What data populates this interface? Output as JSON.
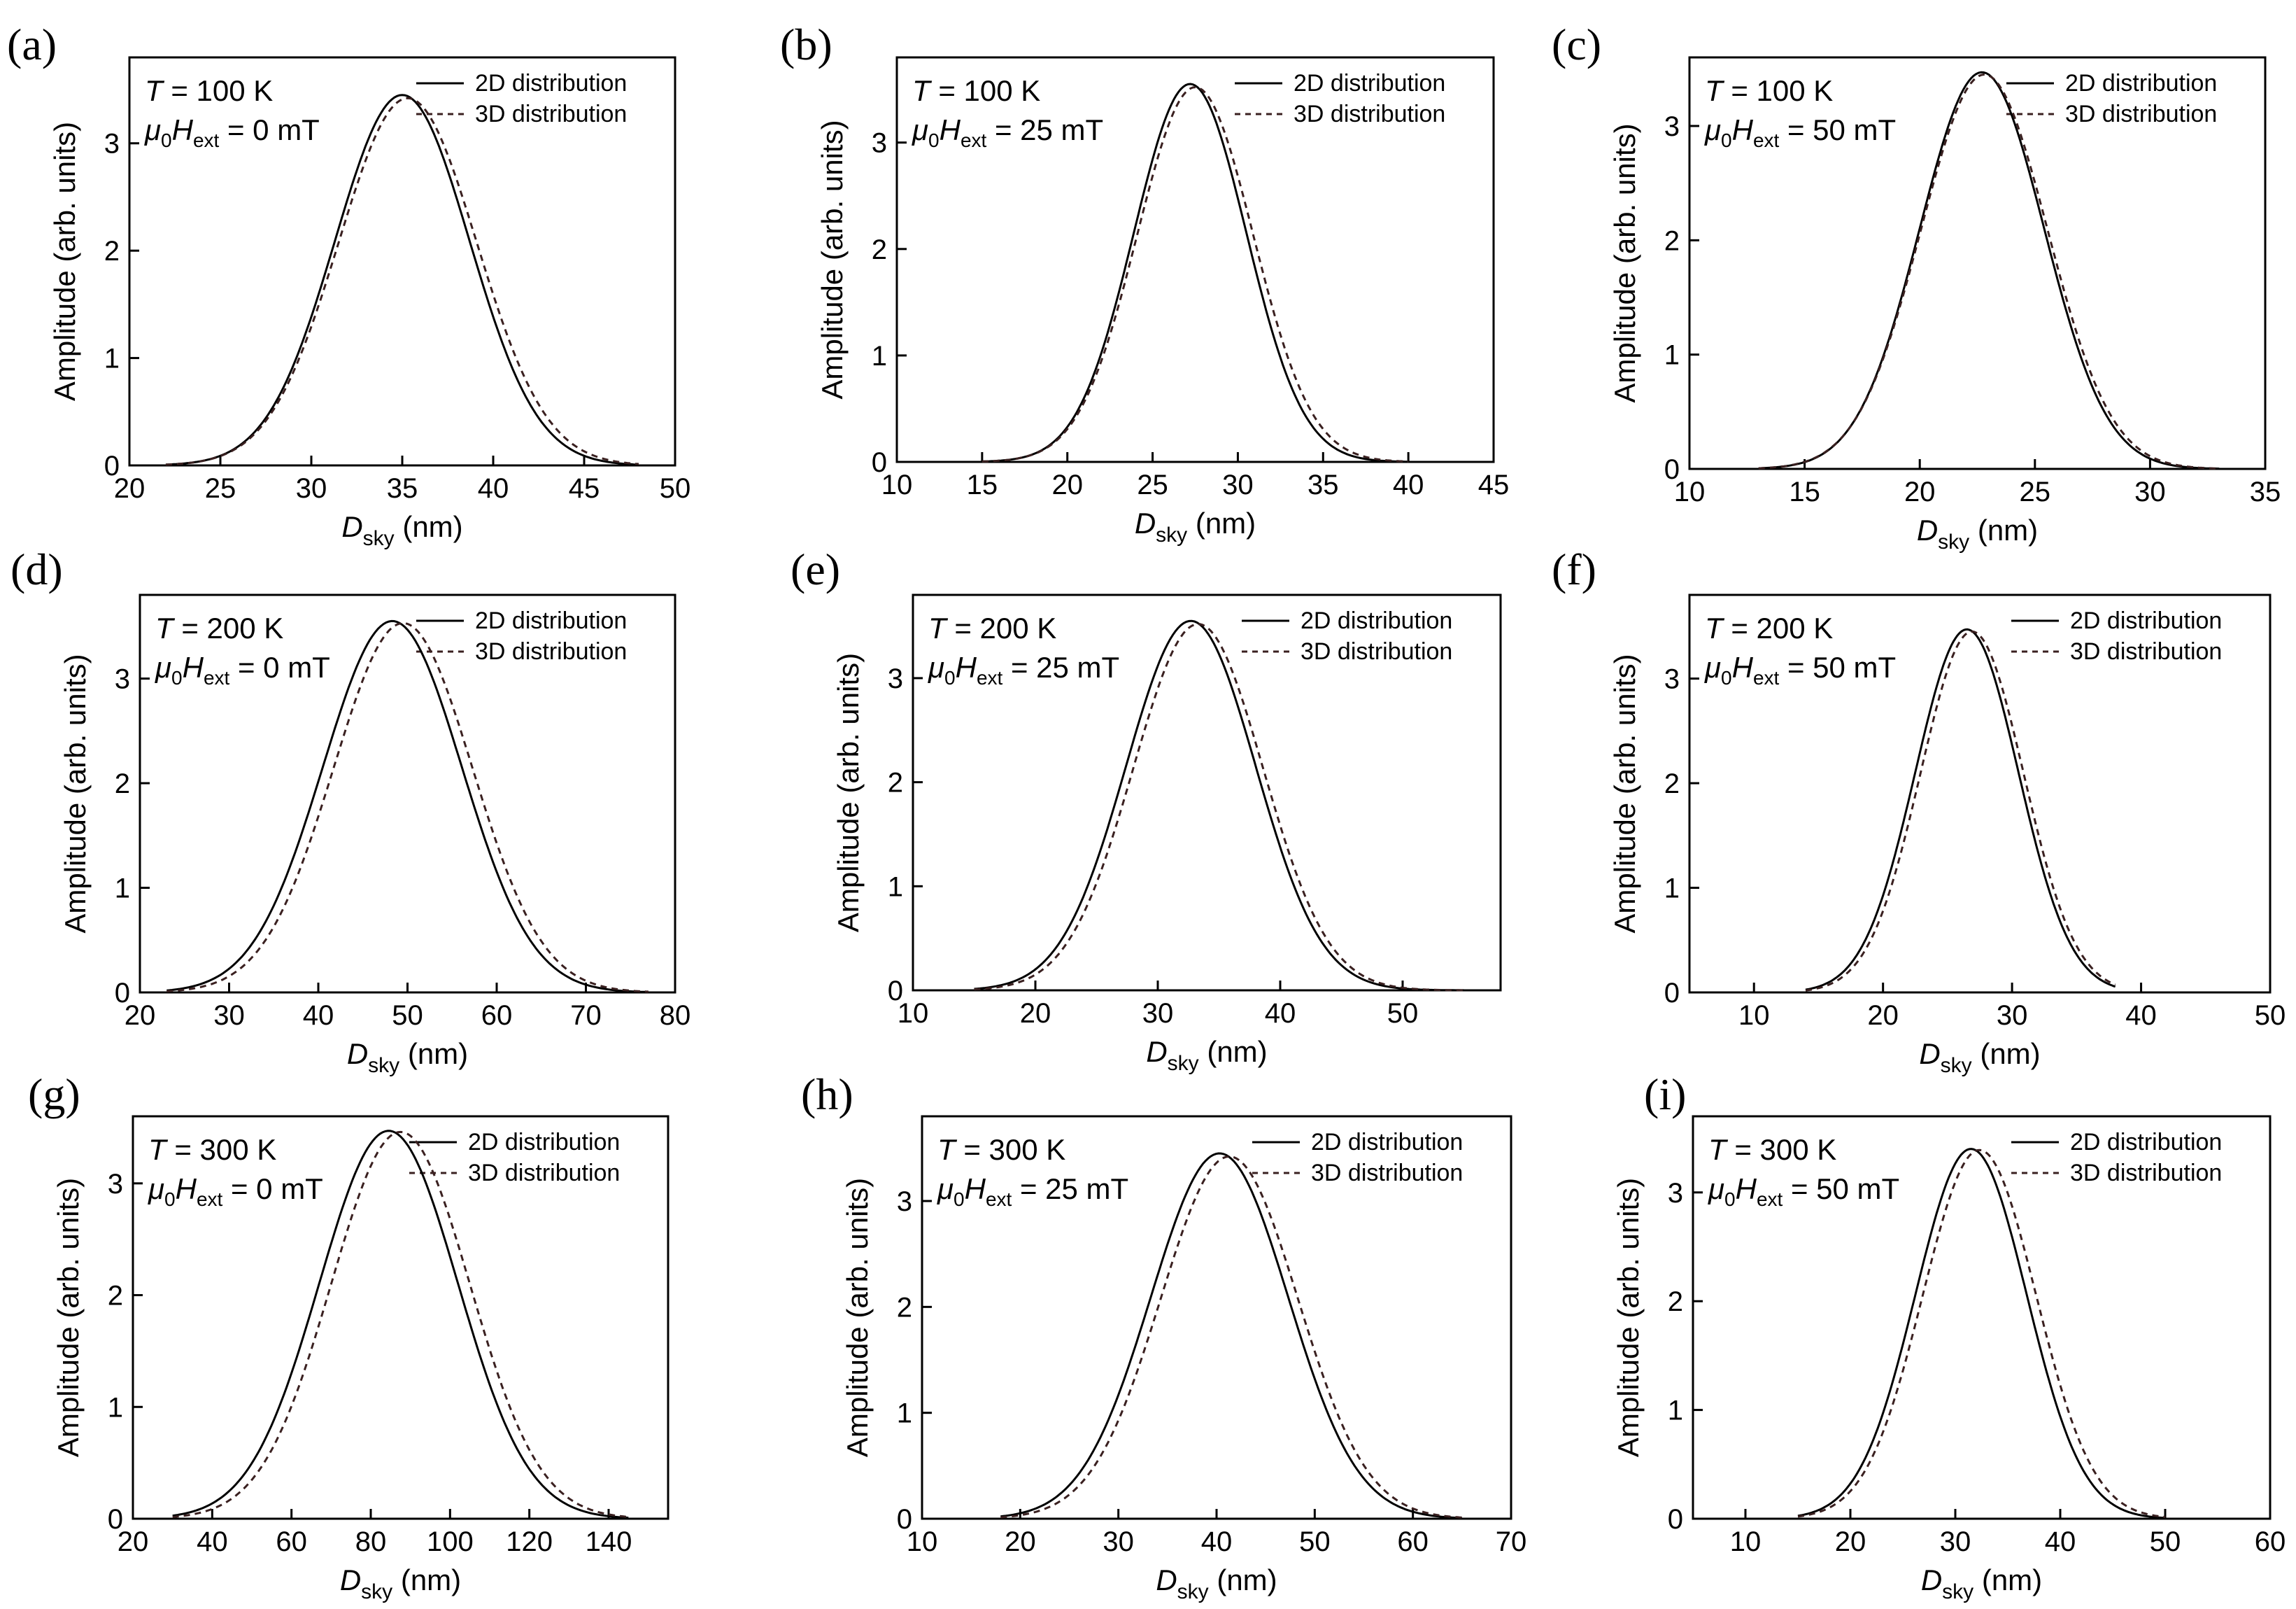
{
  "figure": {
    "title": "",
    "series_names": [
      "2D distribution",
      "3D distribution"
    ]
  },
  "chart_data": [
    {
      "id": "a",
      "panel_label": "(a)",
      "type": "line",
      "temperature": "100 K",
      "field": "0 mT",
      "xlabel_main": "D",
      "xlabel_sub": "sky",
      "xlabel_unit": " (nm)",
      "ylabel": "Amplitude (arb. units)",
      "xlim": [
        20,
        50
      ],
      "xticks": [
        20,
        25,
        30,
        35,
        40,
        45,
        50
      ],
      "ylim": [
        0,
        3.8
      ],
      "yticks": [
        0,
        1,
        2,
        3
      ],
      "series": [
        {
          "name": "2D distribution",
          "style": "solid",
          "peak_x": 35.0,
          "peak_y": 3.45,
          "sigma": 3.7,
          "range": [
            22,
            48
          ]
        },
        {
          "name": "3D distribution",
          "style": "dashed",
          "peak_x": 35.3,
          "peak_y": 3.42,
          "sigma": 3.8,
          "range": [
            22,
            48
          ]
        }
      ]
    },
    {
      "id": "b",
      "panel_label": "(b)",
      "type": "line",
      "temperature": "100 K",
      "field": "25 mT",
      "xlabel_main": "D",
      "xlabel_sub": "sky",
      "xlabel_unit": " (nm)",
      "ylabel": "Amplitude (arb. units)",
      "xlim": [
        10,
        45
      ],
      "xticks": [
        10,
        15,
        20,
        25,
        30,
        35,
        40,
        45
      ],
      "ylim": [
        0,
        3.8
      ],
      "yticks": [
        0,
        1,
        2,
        3
      ],
      "series": [
        {
          "name": "2D distribution",
          "style": "solid",
          "peak_x": 27.2,
          "peak_y": 3.55,
          "sigma": 3.3,
          "range": [
            15,
            40
          ]
        },
        {
          "name": "3D distribution",
          "style": "dashed",
          "peak_x": 27.5,
          "peak_y": 3.52,
          "sigma": 3.4,
          "range": [
            15,
            40
          ]
        }
      ]
    },
    {
      "id": "c",
      "panel_label": "(c)",
      "type": "line",
      "temperature": "100 K",
      "field": "50 mT",
      "xlabel_main": "D",
      "xlabel_sub": "sky",
      "xlabel_unit": " (nm)",
      "ylabel": "Amplitude (arb. units)",
      "xlim": [
        10,
        35
      ],
      "xticks": [
        10,
        15,
        20,
        25,
        30,
        35
      ],
      "ylim": [
        0,
        3.6
      ],
      "yticks": [
        0,
        1,
        2,
        3
      ],
      "series": [
        {
          "name": "2D distribution",
          "style": "solid",
          "peak_x": 22.7,
          "peak_y": 3.47,
          "sigma": 2.7,
          "range": [
            13,
            33
          ]
        },
        {
          "name": "3D distribution",
          "style": "dashed",
          "peak_x": 22.8,
          "peak_y": 3.45,
          "sigma": 2.75,
          "range": [
            13,
            33
          ]
        }
      ]
    },
    {
      "id": "d",
      "panel_label": "(d)",
      "type": "line",
      "temperature": "200 K",
      "field": "0 mT",
      "xlabel_main": "D",
      "xlabel_sub": "sky",
      "xlabel_unit": " (nm)",
      "ylabel": "Amplitude (arb. units)",
      "xlim": [
        20,
        80
      ],
      "xticks": [
        20,
        30,
        40,
        50,
        60,
        70,
        80
      ],
      "ylim": [
        0,
        3.8
      ],
      "yticks": [
        0,
        1,
        2,
        3
      ],
      "series": [
        {
          "name": "2D distribution",
          "style": "solid",
          "peak_x": 48.3,
          "peak_y": 3.55,
          "sigma": 7.8,
          "range": [
            23,
            77
          ]
        },
        {
          "name": "3D distribution",
          "style": "dashed",
          "peak_x": 49.5,
          "peak_y": 3.53,
          "sigma": 7.8,
          "range": [
            23,
            77
          ]
        }
      ]
    },
    {
      "id": "e",
      "panel_label": "(e)",
      "type": "line",
      "temperature": "200 K",
      "field": "25 mT",
      "xlabel_main": "D",
      "xlabel_sub": "sky",
      "xlabel_unit": " (nm)",
      "ylabel": "Amplitude (arb. units)",
      "xlim": [
        10,
        58
      ],
      "xticks": [
        10,
        20,
        30,
        40,
        50
      ],
      "ylim": [
        0,
        3.8
      ],
      "yticks": [
        0,
        1,
        2,
        3
      ],
      "series": [
        {
          "name": "2D distribution",
          "style": "solid",
          "peak_x": 32.7,
          "peak_y": 3.55,
          "sigma": 5.3,
          "range": [
            15,
            55
          ]
        },
        {
          "name": "3D distribution",
          "style": "dashed",
          "peak_x": 33.3,
          "peak_y": 3.52,
          "sigma": 5.3,
          "range": [
            15,
            55
          ]
        }
      ]
    },
    {
      "id": "f",
      "panel_label": "(f)",
      "type": "line",
      "temperature": "200 K",
      "field": "50 mT",
      "xlabel_main": "D",
      "xlabel_sub": "sky",
      "xlabel_unit": " (nm)",
      "ylabel": "Amplitude (arb. units)",
      "xlim": [
        5,
        50
      ],
      "xticks": [
        10,
        20,
        30,
        40,
        50
      ],
      "ylim": [
        0,
        3.8
      ],
      "yticks": [
        0,
        1,
        2,
        3
      ],
      "series": [
        {
          "name": "2D distribution",
          "style": "solid",
          "peak_x": 26.5,
          "peak_y": 3.47,
          "sigma": 4.0,
          "range": [
            14,
            38
          ]
        },
        {
          "name": "3D distribution",
          "style": "dashed",
          "peak_x": 26.9,
          "peak_y": 3.45,
          "sigma": 4.0,
          "range": [
            14,
            38
          ]
        }
      ]
    },
    {
      "id": "g",
      "panel_label": "(g)",
      "type": "line",
      "temperature": "300 K",
      "field": "0 mT",
      "xlabel_main": "D",
      "xlabel_sub": "sky",
      "xlabel_unit": " (nm)",
      "ylabel": "Amplitude (arb. units)",
      "xlim": [
        20,
        155
      ],
      "xticks": [
        20,
        40,
        60,
        80,
        100,
        120,
        140
      ],
      "ylim": [
        0,
        3.6
      ],
      "yticks": [
        0,
        1,
        2,
        3
      ],
      "series": [
        {
          "name": "2D distribution",
          "style": "solid",
          "peak_x": 84.5,
          "peak_y": 3.47,
          "sigma": 17.5,
          "range": [
            30,
            145
          ]
        },
        {
          "name": "3D distribution",
          "style": "dashed",
          "peak_x": 87.5,
          "peak_y": 3.46,
          "sigma": 17.5,
          "range": [
            30,
            145
          ]
        }
      ]
    },
    {
      "id": "h",
      "panel_label": "(h)",
      "type": "line",
      "temperature": "300 K",
      "field": "25 mT",
      "xlabel_main": "D",
      "xlabel_sub": "sky",
      "xlabel_unit": " (nm)",
      "ylabel": "Amplitude (arb. units)",
      "xlim": [
        10,
        70
      ],
      "xticks": [
        10,
        20,
        30,
        40,
        50,
        60,
        70
      ],
      "ylim": [
        0,
        3.8
      ],
      "yticks": [
        0,
        1,
        2,
        3
      ],
      "series": [
        {
          "name": "2D distribution",
          "style": "solid",
          "peak_x": 40.3,
          "peak_y": 3.45,
          "sigma": 7.0,
          "range": [
            18,
            65
          ]
        },
        {
          "name": "3D distribution",
          "style": "dashed",
          "peak_x": 41.3,
          "peak_y": 3.42,
          "sigma": 7.0,
          "range": [
            18,
            65
          ]
        }
      ]
    },
    {
      "id": "i",
      "panel_label": "(i)",
      "type": "line",
      "temperature": "300 K",
      "field": "50 mT",
      "xlabel_main": "D",
      "xlabel_sub": "sky",
      "xlabel_unit": " (nm)",
      "ylabel": "Amplitude (arb. units)",
      "xlim": [
        5,
        60
      ],
      "xticks": [
        10,
        20,
        30,
        40,
        50,
        60
      ],
      "ylim": [
        0,
        3.7
      ],
      "yticks": [
        0,
        1,
        2,
        3
      ],
      "series": [
        {
          "name": "2D distribution",
          "style": "solid",
          "peak_x": 31.5,
          "peak_y": 3.4,
          "sigma": 5.3,
          "range": [
            15,
            50
          ]
        },
        {
          "name": "3D distribution",
          "style": "dashed",
          "peak_x": 32.3,
          "peak_y": 3.39,
          "sigma": 5.4,
          "range": [
            15,
            50
          ]
        }
      ]
    }
  ]
}
